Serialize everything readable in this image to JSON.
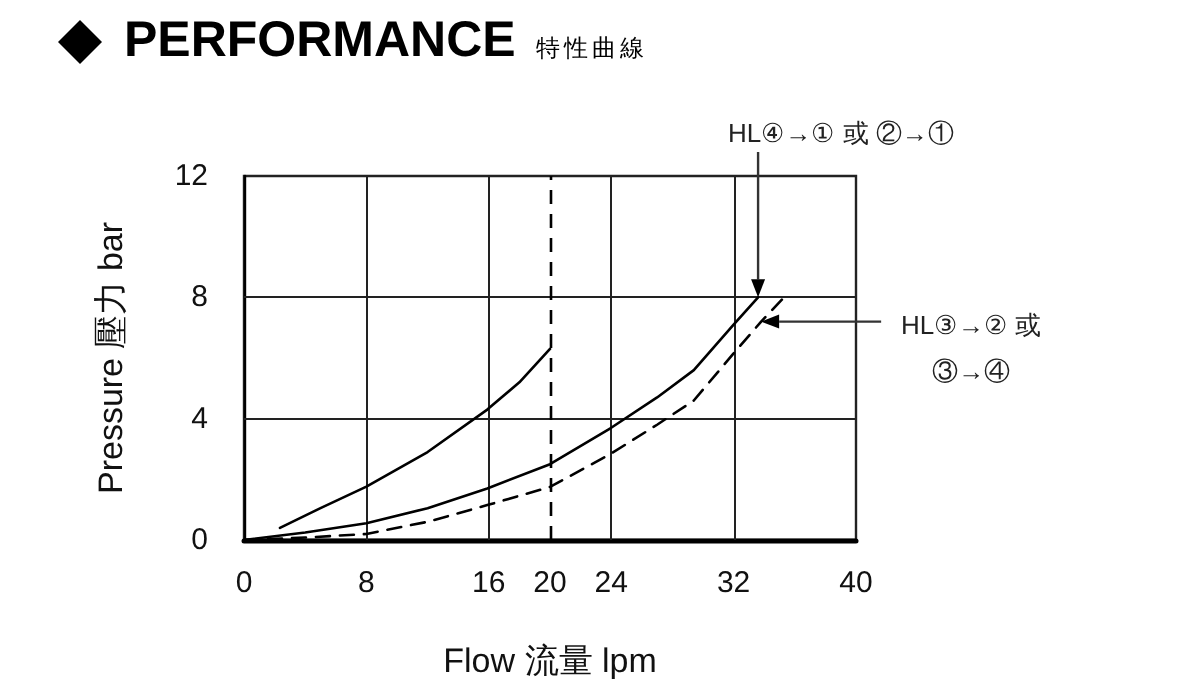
{
  "chart_data": {
    "type": "line",
    "title": "PERFORMANCE",
    "subtitle": "特性曲線",
    "xlabel": "Flow 流量 lpm",
    "ylabel": "Pressure 壓力 bar",
    "xlim": [
      0,
      40
    ],
    "xticks": [
      0,
      8,
      16,
      20,
      24,
      32,
      40
    ],
    "ylim": [
      0,
      12
    ],
    "yticks": [
      0,
      4,
      8,
      12
    ],
    "grid": true,
    "marker": "none",
    "series": [
      {
        "color": "#000000",
        "line_style": "solid",
        "x": [
          2.35,
          5,
          8,
          12,
          15.9,
          18,
          20
        ],
        "values": [
          0.4,
          1.05,
          1.76,
          2.9,
          4.3,
          5.2,
          6.3
        ]
      },
      {
        "color": "#000000",
        "line_style": "solid",
        "x": [
          0,
          4,
          8,
          12,
          15.9,
          20,
          24,
          27,
          29.4,
          32,
          33.6
        ],
        "values": [
          0,
          0.25,
          0.55,
          1.05,
          1.7,
          2.5,
          3.7,
          4.7,
          5.6,
          7.1,
          8.0
        ]
      },
      {
        "color": "#000000",
        "line_style": "dashed",
        "x": [
          0,
          4,
          8,
          12,
          15.9,
          20,
          24,
          27,
          29.4,
          32,
          33.8,
          35.3
        ],
        "values": [
          0,
          0.08,
          0.2,
          0.6,
          1.15,
          1.75,
          2.85,
          3.8,
          4.6,
          6.15,
          7.2,
          8.0
        ]
      }
    ],
    "ref_lines": [
      {
        "axis": "x",
        "value": 20,
        "color": "#000000",
        "line_style": "dashed"
      }
    ],
    "annotations": [
      {
        "text": "HL④→① 或 ②→①",
        "x": 33.6,
        "y": 8.0
      },
      {
        "text": "HL③→② 或 ③→④",
        "x": 33.8,
        "y": 7.2
      }
    ]
  }
}
